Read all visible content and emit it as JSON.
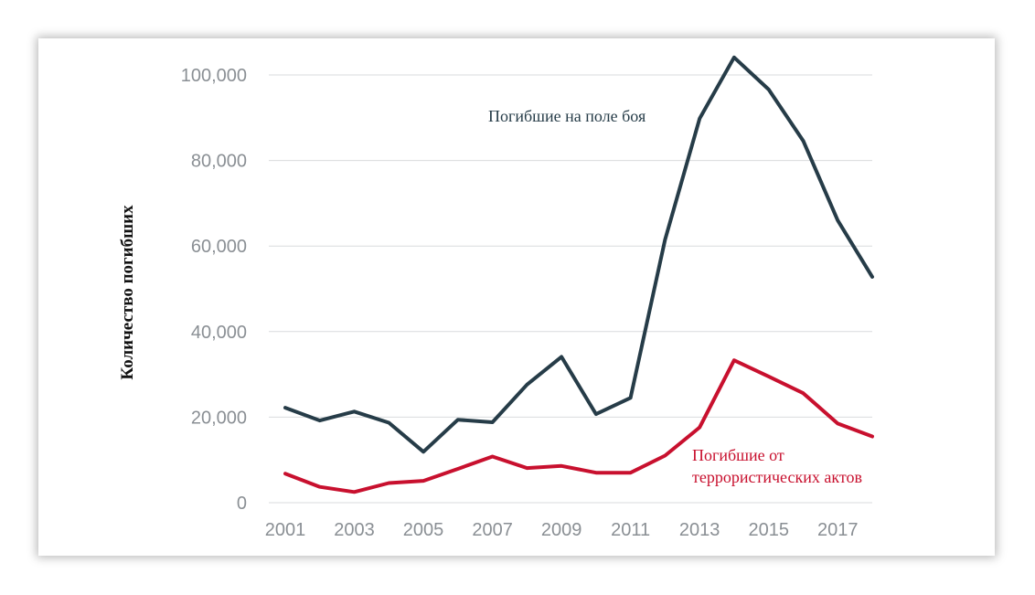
{
  "chart_data": {
    "type": "line",
    "ylabel": "Количество погибших",
    "xlabel": "",
    "ylim": [
      0,
      100000
    ],
    "xlim": [
      2001,
      2018
    ],
    "grid": true,
    "x": [
      2001,
      2002,
      2003,
      2004,
      2005,
      2006,
      2007,
      2008,
      2009,
      2010,
      2011,
      2012,
      2013,
      2014,
      2015,
      2016,
      2017,
      2018
    ],
    "x_ticks": [
      "2001",
      "2003",
      "2005",
      "2007",
      "2009",
      "2011",
      "2013",
      "2015",
      "2017"
    ],
    "y_ticks": [
      "0",
      "20,000",
      "40,000",
      "60,000",
      "80,000",
      "100,000"
    ],
    "series": [
      {
        "name": "Погибшие на поле боя",
        "color": "#263c48",
        "values": [
          22200,
          19200,
          21300,
          18700,
          11900,
          19400,
          18800,
          27600,
          34100,
          20700,
          24500,
          61500,
          89800,
          104100,
          96600,
          84600,
          66000,
          52800
        ]
      },
      {
        "name": "Погибшие от террористических актов",
        "label_lines": [
          "Погибшие от",
          "террористических актов"
        ],
        "color": "#c8102e",
        "values": [
          6800,
          3700,
          2500,
          4600,
          5100,
          7900,
          10800,
          8100,
          8600,
          7000,
          7000,
          11000,
          17600,
          33300,
          29500,
          25600,
          18500,
          15500
        ]
      }
    ]
  }
}
